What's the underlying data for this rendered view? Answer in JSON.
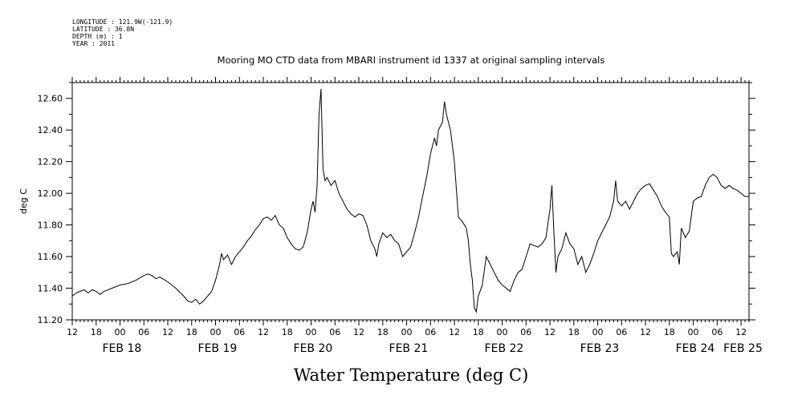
{
  "chart_data": {
    "type": "line",
    "header": {
      "longitude": "LONGITUDE : 121.9W(-121.9)",
      "latitude": "LATITUDE : 36.8N",
      "depth": "DEPTH (m) : 1",
      "year": "YEAR : 2011"
    },
    "title": "Mooring MO CTD data from MBARI instrument id 1337 at original sampling intervals",
    "xlabel": "Water Temperature (deg C)",
    "ylabel": "deg C",
    "ylim": [
      11.2,
      12.7
    ],
    "xlim_hours": [
      0,
      170
    ],
    "y_ticks": [
      "11.20",
      "11.40",
      "11.60",
      "11.80",
      "12.00",
      "12.20",
      "12.40",
      "12.60"
    ],
    "x_hour_ticks": [
      "12",
      "18",
      "00",
      "06",
      "12",
      "18",
      "00",
      "06",
      "12",
      "18",
      "00",
      "06",
      "12",
      "18",
      "00",
      "06",
      "12",
      "18",
      "00",
      "06",
      "12",
      "18",
      "00",
      "06",
      "12",
      "18",
      "00",
      "06",
      "12"
    ],
    "x_date_labels": [
      "FEB 18",
      "FEB 19",
      "FEB 20",
      "FEB 21",
      "FEB 22",
      "FEB 23",
      "FEB 24",
      "FEB 25"
    ],
    "grid": false,
    "series": [
      {
        "points": [
          [
            0,
            11.35
          ],
          [
            1,
            11.37
          ],
          [
            2,
            11.38
          ],
          [
            3,
            11.39
          ],
          [
            4,
            11.37
          ],
          [
            5,
            11.39
          ],
          [
            6,
            11.38
          ],
          [
            7,
            11.36
          ],
          [
            8,
            11.38
          ],
          [
            10,
            11.4
          ],
          [
            12,
            11.42
          ],
          [
            14,
            11.43
          ],
          [
            16,
            11.45
          ],
          [
            18,
            11.48
          ],
          [
            19,
            11.49
          ],
          [
            20,
            11.48
          ],
          [
            21,
            11.46
          ],
          [
            22,
            11.47
          ],
          [
            24,
            11.44
          ],
          [
            26,
            11.4
          ],
          [
            28,
            11.35
          ],
          [
            29,
            11.32
          ],
          [
            30,
            11.31
          ],
          [
            31,
            11.33
          ],
          [
            32,
            11.3
          ],
          [
            33,
            11.32
          ],
          [
            34,
            11.35
          ],
          [
            35,
            11.38
          ],
          [
            36,
            11.45
          ],
          [
            37,
            11.55
          ],
          [
            37.5,
            11.62
          ],
          [
            38,
            11.58
          ],
          [
            39,
            11.61
          ],
          [
            40,
            11.55
          ],
          [
            41,
            11.6
          ],
          [
            42,
            11.63
          ],
          [
            43,
            11.66
          ],
          [
            44,
            11.7
          ],
          [
            45,
            11.73
          ],
          [
            46,
            11.77
          ],
          [
            47,
            11.8
          ],
          [
            48,
            11.84
          ],
          [
            49,
            11.85
          ],
          [
            50,
            11.83
          ],
          [
            51,
            11.86
          ],
          [
            52,
            11.8
          ],
          [
            53,
            11.78
          ],
          [
            54,
            11.72
          ],
          [
            55,
            11.68
          ],
          [
            56,
            11.65
          ],
          [
            57,
            11.64
          ],
          [
            58,
            11.66
          ],
          [
            59,
            11.75
          ],
          [
            60,
            11.9
          ],
          [
            60.5,
            11.95
          ],
          [
            61,
            11.88
          ],
          [
            61.5,
            12.05
          ],
          [
            62,
            12.5
          ],
          [
            62.5,
            12.66
          ],
          [
            63,
            12.15
          ],
          [
            63.5,
            12.08
          ],
          [
            64,
            12.1
          ],
          [
            65,
            12.05
          ],
          [
            66,
            12.08
          ],
          [
            67,
            12.0
          ],
          [
            68,
            11.95
          ],
          [
            69,
            11.9
          ],
          [
            70,
            11.87
          ],
          [
            71,
            11.85
          ],
          [
            72,
            11.87
          ],
          [
            73,
            11.86
          ],
          [
            74,
            11.8
          ],
          [
            75,
            11.7
          ],
          [
            76,
            11.65
          ],
          [
            76.5,
            11.6
          ],
          [
            77,
            11.68
          ],
          [
            78,
            11.75
          ],
          [
            79,
            11.72
          ],
          [
            80,
            11.74
          ],
          [
            81,
            11.7
          ],
          [
            82,
            11.68
          ],
          [
            83,
            11.6
          ],
          [
            84,
            11.63
          ],
          [
            85,
            11.66
          ],
          [
            86,
            11.75
          ],
          [
            87,
            11.85
          ],
          [
            88,
            11.98
          ],
          [
            89,
            12.1
          ],
          [
            90,
            12.25
          ],
          [
            91,
            12.35
          ],
          [
            91.5,
            12.3
          ],
          [
            92,
            12.4
          ],
          [
            93,
            12.45
          ],
          [
            93.5,
            12.58
          ],
          [
            94,
            12.5
          ],
          [
            95,
            12.4
          ],
          [
            96,
            12.2
          ],
          [
            97,
            11.85
          ],
          [
            98,
            11.82
          ],
          [
            99,
            11.78
          ],
          [
            99.5,
            11.7
          ],
          [
            100,
            11.55
          ],
          [
            100.5,
            11.45
          ],
          [
            101,
            11.28
          ],
          [
            101.5,
            11.25
          ],
          [
            102,
            11.35
          ],
          [
            103,
            11.42
          ],
          [
            104,
            11.6
          ],
          [
            105,
            11.55
          ],
          [
            106,
            11.5
          ],
          [
            107,
            11.45
          ],
          [
            108,
            11.42
          ],
          [
            109,
            11.4
          ],
          [
            110,
            11.38
          ],
          [
            111,
            11.45
          ],
          [
            112,
            11.5
          ],
          [
            113,
            11.52
          ],
          [
            114,
            11.6
          ],
          [
            115,
            11.68
          ],
          [
            116,
            11.67
          ],
          [
            117,
            11.66
          ],
          [
            118,
            11.68
          ],
          [
            119,
            11.72
          ],
          [
            120,
            11.9
          ],
          [
            120.5,
            12.05
          ],
          [
            121,
            11.75
          ],
          [
            121.5,
            11.5
          ],
          [
            122,
            11.6
          ],
          [
            123,
            11.65
          ],
          [
            124,
            11.75
          ],
          [
            125,
            11.68
          ],
          [
            126,
            11.65
          ],
          [
            127,
            11.55
          ],
          [
            128,
            11.6
          ],
          [
            129,
            11.5
          ],
          [
            130,
            11.55
          ],
          [
            131,
            11.62
          ],
          [
            132,
            11.7
          ],
          [
            133,
            11.75
          ],
          [
            134,
            11.8
          ],
          [
            135,
            11.85
          ],
          [
            136,
            11.95
          ],
          [
            136.5,
            12.08
          ],
          [
            137,
            11.95
          ],
          [
            138,
            11.92
          ],
          [
            139,
            11.95
          ],
          [
            140,
            11.9
          ],
          [
            141,
            11.95
          ],
          [
            142,
            12.0
          ],
          [
            143,
            12.03
          ],
          [
            144,
            12.05
          ],
          [
            145,
            12.06
          ],
          [
            146,
            12.02
          ],
          [
            147,
            11.98
          ],
          [
            148,
            11.92
          ],
          [
            149,
            11.88
          ],
          [
            150,
            11.85
          ],
          [
            150.5,
            11.62
          ],
          [
            151,
            11.6
          ],
          [
            152,
            11.63
          ],
          [
            152.5,
            11.55
          ],
          [
            153,
            11.78
          ],
          [
            154,
            11.72
          ],
          [
            155,
            11.76
          ],
          [
            156,
            11.95
          ],
          [
            157,
            11.97
          ],
          [
            158,
            11.98
          ],
          [
            159,
            12.05
          ],
          [
            160,
            12.1
          ],
          [
            161,
            12.12
          ],
          [
            162,
            12.1
          ],
          [
            163,
            12.05
          ],
          [
            164,
            12.03
          ],
          [
            165,
            12.05
          ],
          [
            166,
            12.03
          ],
          [
            167,
            12.02
          ],
          [
            168,
            12.0
          ],
          [
            169,
            11.98
          ],
          [
            170,
            11.98
          ]
        ]
      }
    ]
  }
}
